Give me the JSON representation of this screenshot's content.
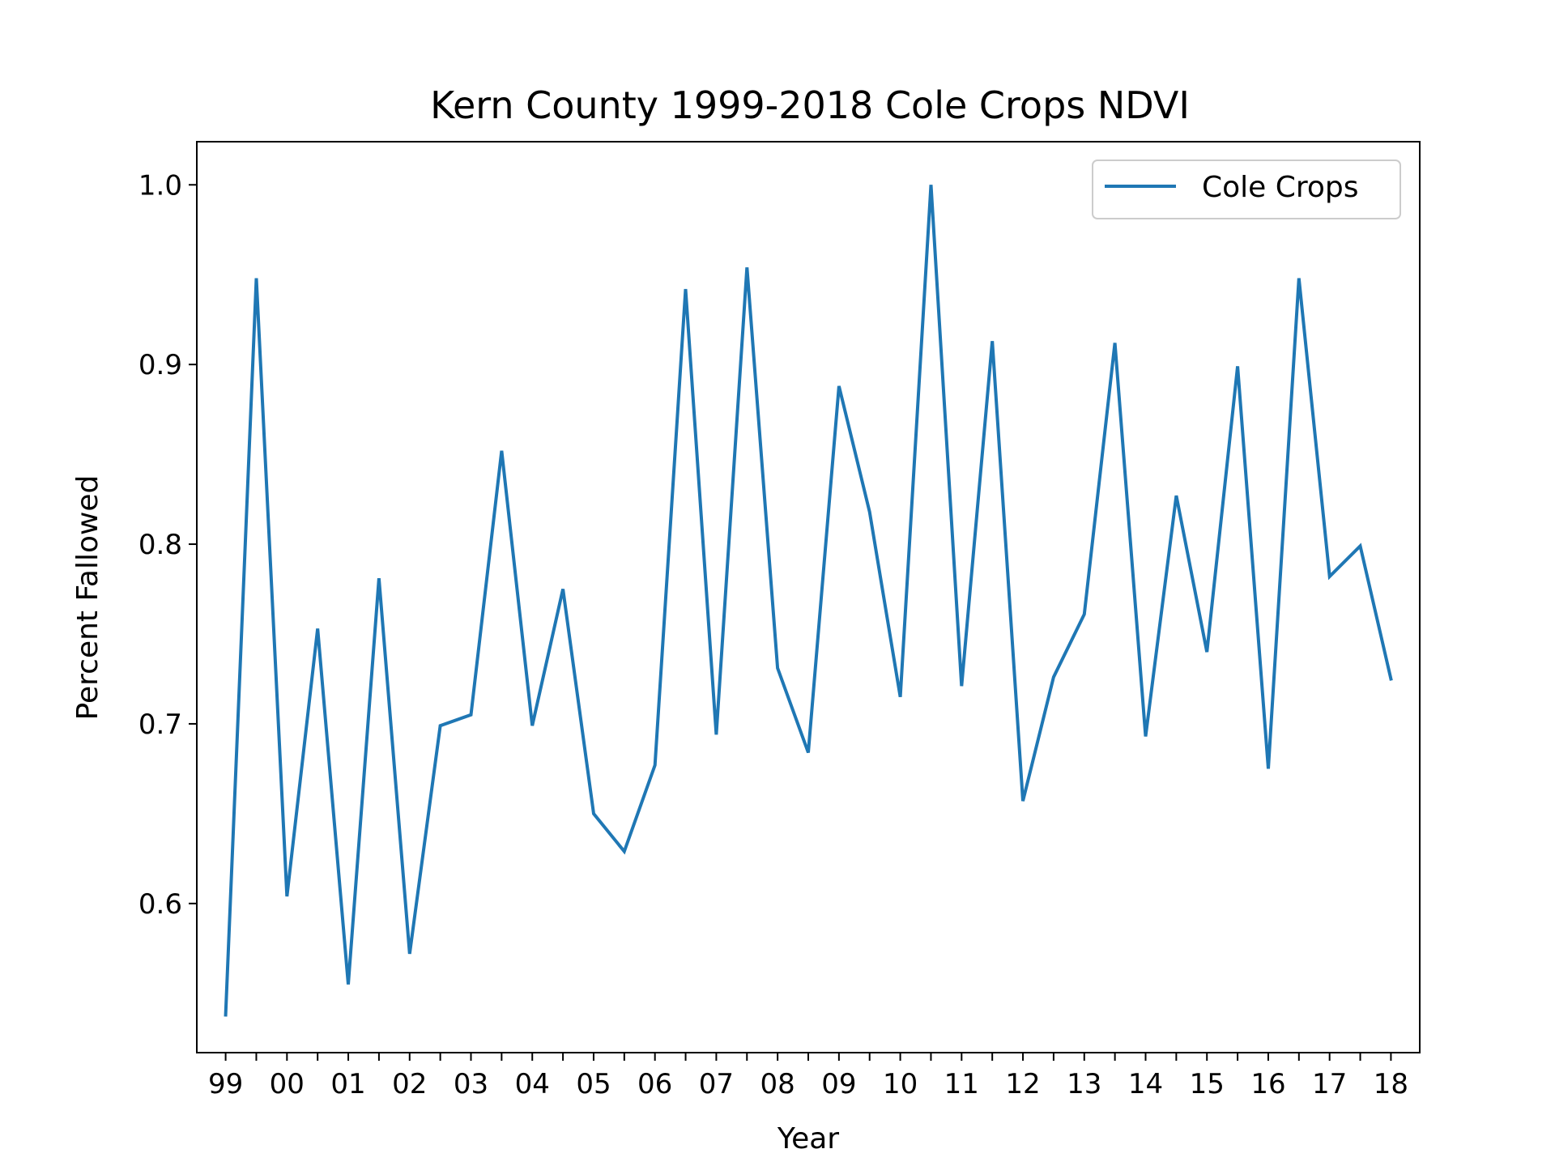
{
  "chart_data": {
    "type": "line",
    "title": "Kern County 1999-2018 Cole Crops NDVI",
    "xlabel": "Year",
    "ylabel": "Percent Fallowed",
    "x_tick_labels": [
      "99",
      "00",
      "01",
      "02",
      "03",
      "04",
      "05",
      "06",
      "07",
      "08",
      "09",
      "10",
      "11",
      "12",
      "13",
      "14",
      "15",
      "16",
      "17",
      "18"
    ],
    "x": [
      1999.0,
      1999.5,
      2000.0,
      2000.5,
      2001.0,
      2001.5,
      2002.0,
      2002.5,
      2003.0,
      2003.5,
      2004.0,
      2004.5,
      2005.0,
      2005.5,
      2006.0,
      2006.5,
      2007.0,
      2007.5,
      2008.0,
      2008.5,
      2009.0,
      2009.5,
      2010.0,
      2010.5,
      2011.0,
      2011.5,
      2012.0,
      2012.5,
      2013.0,
      2013.5,
      2014.0,
      2014.5,
      2015.0,
      2015.5,
      2016.0,
      2016.5,
      2017.0,
      2017.5,
      2018.0
    ],
    "xlim": [
      1998.53,
      2018.47
    ],
    "yticks": [
      0.6,
      0.7,
      0.8,
      0.9,
      1.0
    ],
    "ylim": [
      0.517,
      1.024
    ],
    "grid": false,
    "legend_position": "top-right",
    "series": [
      {
        "name": "Cole Crops",
        "color": "#1f77b4",
        "values": [
          0.538,
          0.948,
          0.604,
          0.753,
          0.555,
          0.781,
          0.572,
          0.699,
          0.705,
          0.852,
          0.699,
          0.775,
          0.65,
          0.629,
          0.677,
          0.942,
          0.694,
          0.954,
          0.731,
          0.684,
          0.888,
          0.818,
          0.715,
          1.0,
          0.721,
          0.913,
          0.657,
          0.726,
          0.761,
          0.912,
          0.693,
          0.827,
          0.74,
          0.899,
          0.675,
          0.948,
          0.782,
          0.799,
          0.725
        ]
      }
    ]
  }
}
